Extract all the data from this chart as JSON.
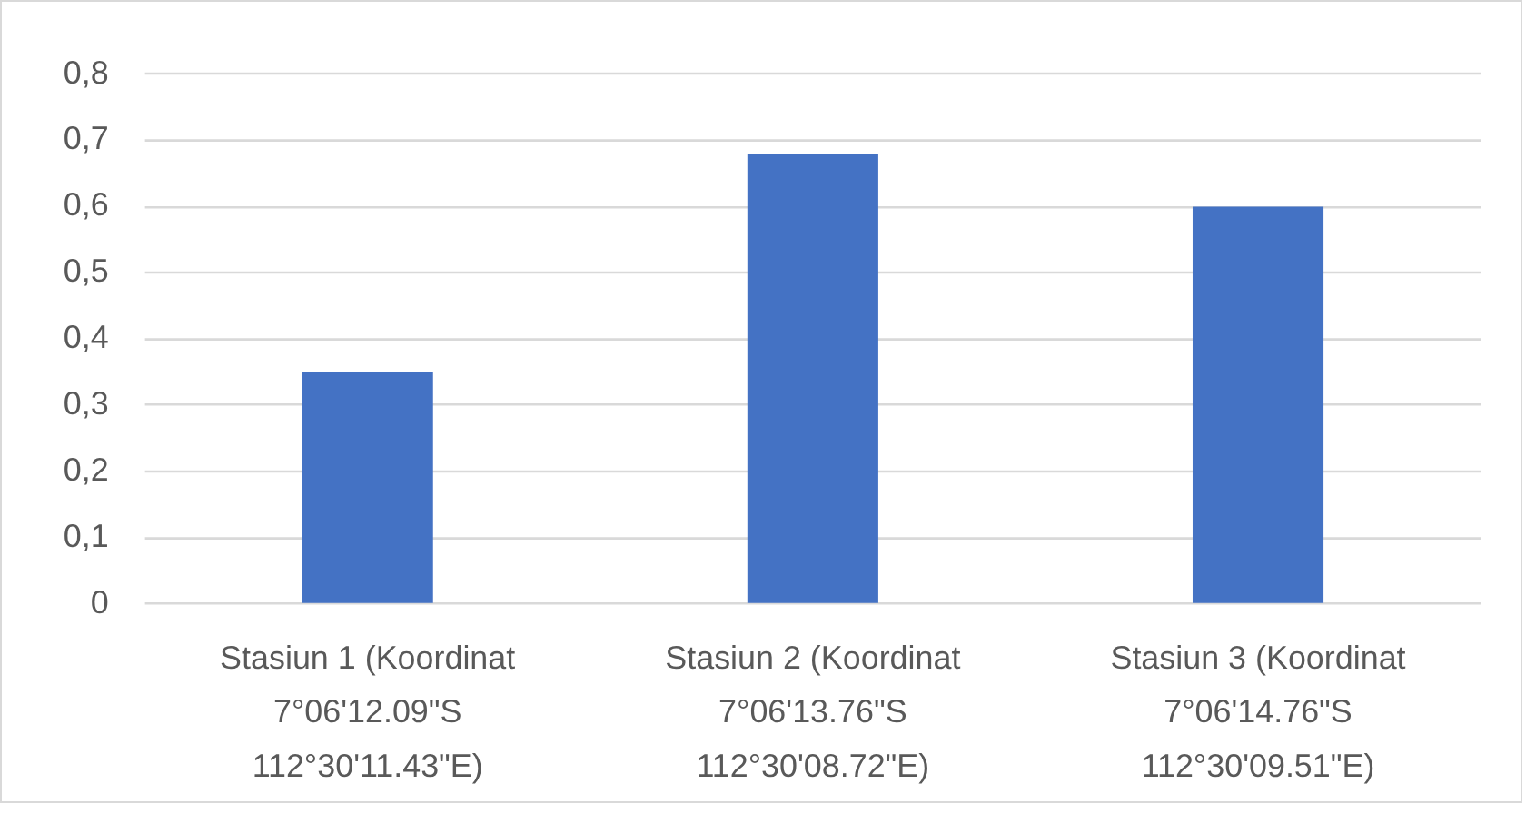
{
  "chart_data": {
    "type": "bar",
    "categories": [
      "Stasiun 1 (Koordinat 7°06'12.09\"S 112°30'11.43\"E)",
      "Stasiun 2 (Koordinat 7°06'13.76\"S 112°30'08.72\"E)",
      "Stasiun 3 (Koordinat 7°06'14.76\"S 112°30'09.51\"E)"
    ],
    "values": [
      0.35,
      0.68,
      0.6
    ],
    "color": "#4472c4",
    "ylim": [
      0,
      0.8
    ],
    "yticks": [
      0,
      {
        "value": 0.1,
        "label": "0,1"
      },
      {
        "value": 0.2,
        "label": "0,2"
      },
      {
        "value": 0.3,
        "label": "0,3"
      },
      {
        "value": 0.4,
        "label": "0,4"
      },
      {
        "value": 0.5,
        "label": "0,5"
      },
      {
        "value": 0.6,
        "label": "0,6"
      },
      {
        "value": 0.7,
        "label": "0,7"
      },
      {
        "value": 0.8,
        "label": "0,8"
      }
    ],
    "grid": "y"
  }
}
